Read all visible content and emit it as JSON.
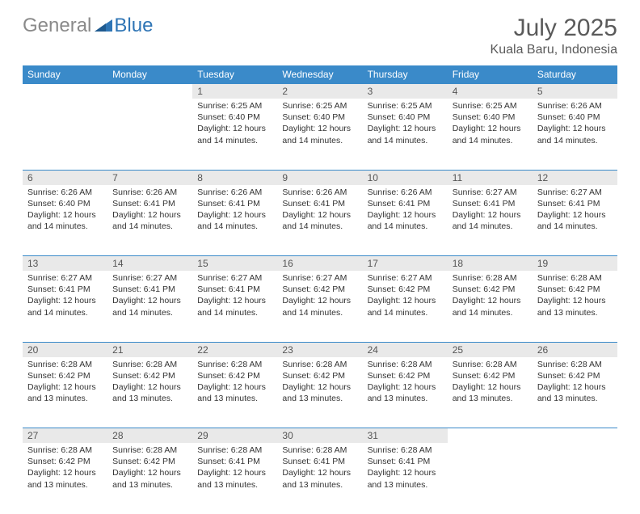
{
  "brand": {
    "gray": "General",
    "blue": "Blue"
  },
  "title": "July 2025",
  "location": "Kuala Baru, Indonesia",
  "colors": {
    "header_bg": "#3a8ac9",
    "header_text": "#ffffff",
    "daynum_bg": "#e9e9e9",
    "border": "#3a8ac9",
    "logo_gray": "#8a8a8a",
    "logo_blue": "#2f75b5",
    "text": "#333333"
  },
  "weekdays": [
    "Sunday",
    "Monday",
    "Tuesday",
    "Wednesday",
    "Thursday",
    "Friday",
    "Saturday"
  ],
  "first_weekday_index": 2,
  "days": [
    {
      "n": 1,
      "sunrise": "6:25 AM",
      "sunset": "6:40 PM",
      "daylight": "12 hours and 14 minutes."
    },
    {
      "n": 2,
      "sunrise": "6:25 AM",
      "sunset": "6:40 PM",
      "daylight": "12 hours and 14 minutes."
    },
    {
      "n": 3,
      "sunrise": "6:25 AM",
      "sunset": "6:40 PM",
      "daylight": "12 hours and 14 minutes."
    },
    {
      "n": 4,
      "sunrise": "6:25 AM",
      "sunset": "6:40 PM",
      "daylight": "12 hours and 14 minutes."
    },
    {
      "n": 5,
      "sunrise": "6:26 AM",
      "sunset": "6:40 PM",
      "daylight": "12 hours and 14 minutes."
    },
    {
      "n": 6,
      "sunrise": "6:26 AM",
      "sunset": "6:40 PM",
      "daylight": "12 hours and 14 minutes."
    },
    {
      "n": 7,
      "sunrise": "6:26 AM",
      "sunset": "6:41 PM",
      "daylight": "12 hours and 14 minutes."
    },
    {
      "n": 8,
      "sunrise": "6:26 AM",
      "sunset": "6:41 PM",
      "daylight": "12 hours and 14 minutes."
    },
    {
      "n": 9,
      "sunrise": "6:26 AM",
      "sunset": "6:41 PM",
      "daylight": "12 hours and 14 minutes."
    },
    {
      "n": 10,
      "sunrise": "6:26 AM",
      "sunset": "6:41 PM",
      "daylight": "12 hours and 14 minutes."
    },
    {
      "n": 11,
      "sunrise": "6:27 AM",
      "sunset": "6:41 PM",
      "daylight": "12 hours and 14 minutes."
    },
    {
      "n": 12,
      "sunrise": "6:27 AM",
      "sunset": "6:41 PM",
      "daylight": "12 hours and 14 minutes."
    },
    {
      "n": 13,
      "sunrise": "6:27 AM",
      "sunset": "6:41 PM",
      "daylight": "12 hours and 14 minutes."
    },
    {
      "n": 14,
      "sunrise": "6:27 AM",
      "sunset": "6:41 PM",
      "daylight": "12 hours and 14 minutes."
    },
    {
      "n": 15,
      "sunrise": "6:27 AM",
      "sunset": "6:41 PM",
      "daylight": "12 hours and 14 minutes."
    },
    {
      "n": 16,
      "sunrise": "6:27 AM",
      "sunset": "6:42 PM",
      "daylight": "12 hours and 14 minutes."
    },
    {
      "n": 17,
      "sunrise": "6:27 AM",
      "sunset": "6:42 PM",
      "daylight": "12 hours and 14 minutes."
    },
    {
      "n": 18,
      "sunrise": "6:28 AM",
      "sunset": "6:42 PM",
      "daylight": "12 hours and 14 minutes."
    },
    {
      "n": 19,
      "sunrise": "6:28 AM",
      "sunset": "6:42 PM",
      "daylight": "12 hours and 13 minutes."
    },
    {
      "n": 20,
      "sunrise": "6:28 AM",
      "sunset": "6:42 PM",
      "daylight": "12 hours and 13 minutes."
    },
    {
      "n": 21,
      "sunrise": "6:28 AM",
      "sunset": "6:42 PM",
      "daylight": "12 hours and 13 minutes."
    },
    {
      "n": 22,
      "sunrise": "6:28 AM",
      "sunset": "6:42 PM",
      "daylight": "12 hours and 13 minutes."
    },
    {
      "n": 23,
      "sunrise": "6:28 AM",
      "sunset": "6:42 PM",
      "daylight": "12 hours and 13 minutes."
    },
    {
      "n": 24,
      "sunrise": "6:28 AM",
      "sunset": "6:42 PM",
      "daylight": "12 hours and 13 minutes."
    },
    {
      "n": 25,
      "sunrise": "6:28 AM",
      "sunset": "6:42 PM",
      "daylight": "12 hours and 13 minutes."
    },
    {
      "n": 26,
      "sunrise": "6:28 AM",
      "sunset": "6:42 PM",
      "daylight": "12 hours and 13 minutes."
    },
    {
      "n": 27,
      "sunrise": "6:28 AM",
      "sunset": "6:42 PM",
      "daylight": "12 hours and 13 minutes."
    },
    {
      "n": 28,
      "sunrise": "6:28 AM",
      "sunset": "6:42 PM",
      "daylight": "12 hours and 13 minutes."
    },
    {
      "n": 29,
      "sunrise": "6:28 AM",
      "sunset": "6:41 PM",
      "daylight": "12 hours and 13 minutes."
    },
    {
      "n": 30,
      "sunrise": "6:28 AM",
      "sunset": "6:41 PM",
      "daylight": "12 hours and 13 minutes."
    },
    {
      "n": 31,
      "sunrise": "6:28 AM",
      "sunset": "6:41 PM",
      "daylight": "12 hours and 13 minutes."
    }
  ],
  "labels": {
    "sunrise": "Sunrise:",
    "sunset": "Sunset:",
    "daylight": "Daylight:"
  }
}
